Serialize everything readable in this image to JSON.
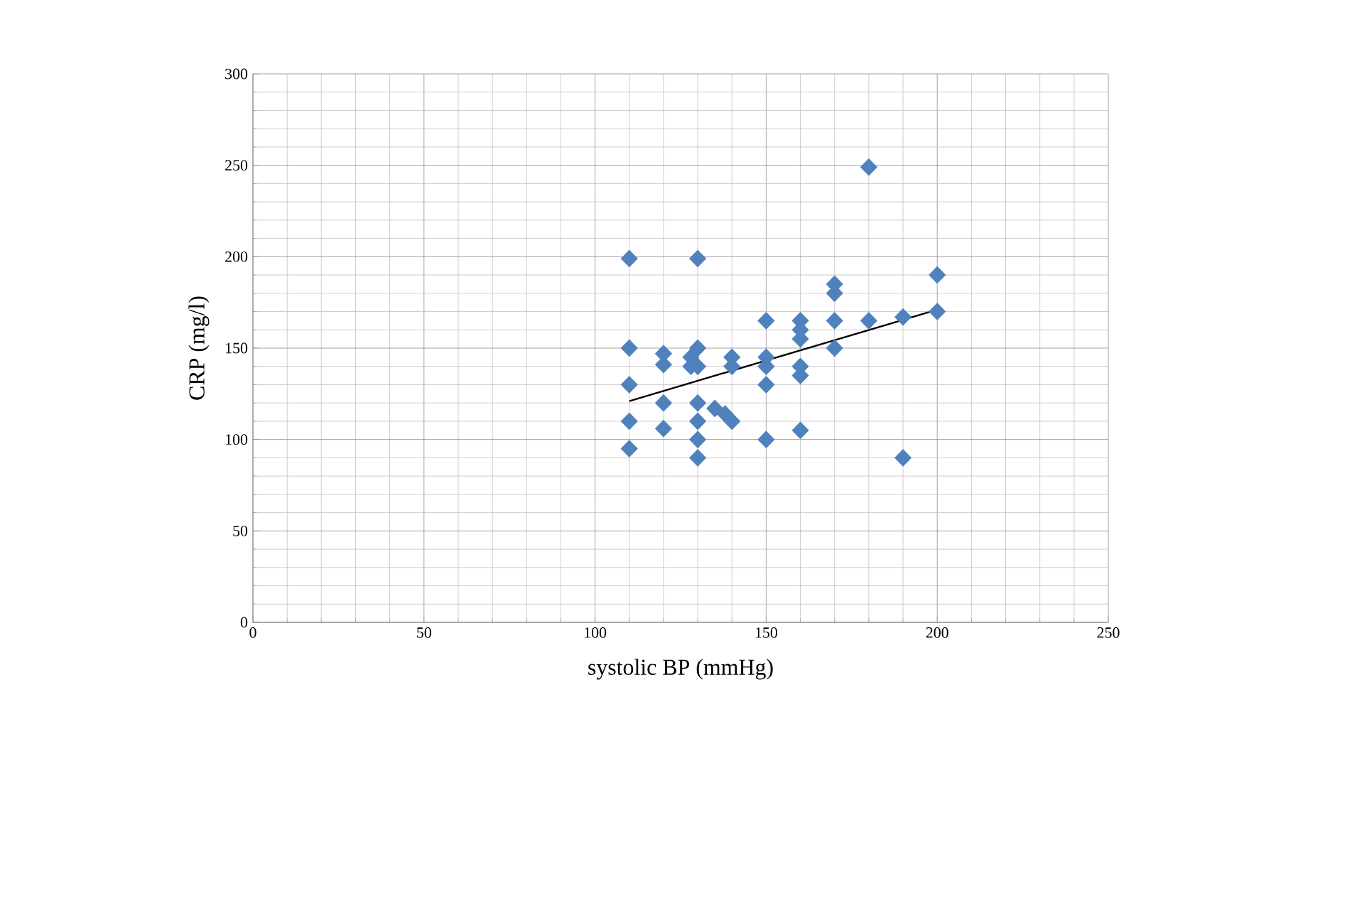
{
  "chart_data": {
    "type": "scatter",
    "xlabel": "systolic BP (mmHg)",
    "ylabel": "CRP (mg/l)",
    "xlim": [
      0,
      250
    ],
    "ylim": [
      0,
      300
    ],
    "xticks": [
      0,
      50,
      100,
      150,
      200,
      250
    ],
    "yticks": [
      0,
      50,
      100,
      150,
      200,
      250,
      300
    ],
    "grid": true,
    "marker": "diamond",
    "series": [
      {
        "color": "#4f81bd",
        "x": [
          110,
          110,
          110,
          110,
          110,
          120,
          120,
          120,
          120,
          128,
          128,
          130,
          130,
          130,
          130,
          130,
          130,
          130,
          135,
          138,
          140,
          140,
          140,
          150,
          150,
          150,
          150,
          150,
          160,
          160,
          160,
          160,
          160,
          160,
          170,
          170,
          170,
          170,
          180,
          180,
          190,
          190,
          200,
          200
        ],
        "values": [
          199,
          150,
          130,
          110,
          95,
          147,
          141,
          120,
          106,
          145,
          140,
          199,
          150,
          140,
          120,
          110,
          100,
          90,
          117,
          114,
          145,
          140,
          110,
          165,
          145,
          140,
          130,
          100,
          165,
          160,
          155,
          140,
          135,
          105,
          185,
          180,
          165,
          150,
          249,
          165,
          167,
          90,
          190,
          170
        ]
      },
      {
        "type": "line",
        "color": "#000000",
        "marker": "none",
        "x": [
          110,
          200
        ],
        "values": [
          121,
          171
        ]
      }
    ]
  }
}
